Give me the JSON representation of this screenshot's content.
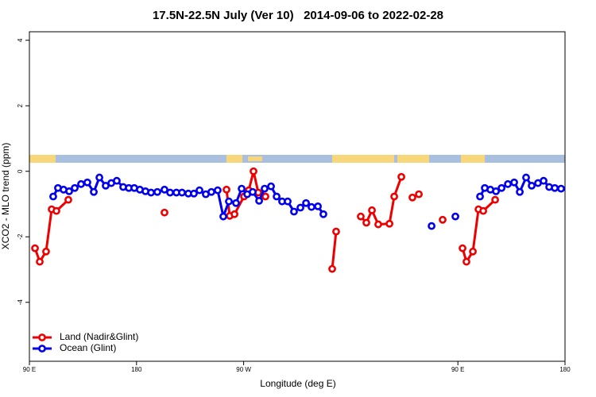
{
  "chart_data": {
    "type": "line",
    "title": "17.5N-22.5N July (Ver 10)   2014-09-06 to 2022-02-28",
    "xlabel": "Longitude (deg E)",
    "ylabel": "XCO2 - MLO trend (ppm)",
    "xlim": [
      90,
      540
    ],
    "ylim": [
      -5.8,
      4.26
    ],
    "xticks": [
      {
        "value": 90,
        "label": "90 E"
      },
      180,
      {
        "value": 270,
        "label": "90 W"
      },
      {
        "value": 450,
        "label": "90 E"
      },
      {
        "value": 540,
        "label": "180"
      }
    ],
    "yticks": [
      -4,
      -2,
      0,
      2,
      4
    ],
    "legend": "bottom-left",
    "series": [
      {
        "name": "Land (Nadir&Glint)",
        "color": "#ee0000",
        "x": [
          94.7,
          98.7,
          104.0,
          108.7,
          112.7,
          122.7,
          null,
          203.5,
          null,
          255.6,
          258.3,
          262.3,
          270.3,
          274.3,
          278.3,
          282.3,
          288.3,
          null,
          344.4,
          347.7,
          null,
          368.4,
          373.1,
          377.8,
          383.1,
          392.5,
          396.5,
          402.5,
          null,
          411.8,
          417.2,
          null,
          437.2,
          null,
          453.9,
          457.2,
          462.6,
          467.3,
          471.3,
          481.3
        ],
        "values": [
          -2.35,
          -2.76,
          -2.45,
          -1.16,
          -1.21,
          -0.87,
          null,
          -1.26,
          null,
          -0.56,
          -1.36,
          -1.31,
          -0.77,
          -0.58,
          0.0,
          -0.65,
          -0.77,
          null,
          -2.98,
          -1.84,
          null,
          -1.38,
          -1.57,
          -1.19,
          -1.62,
          -1.6,
          -0.77,
          -0.17,
          null,
          -0.8,
          -0.7,
          null,
          -1.48,
          null,
          -2.35,
          -2.76,
          -2.45,
          -1.16,
          -1.21,
          -0.87
        ]
      },
      {
        "name": "Ocean (Glint)",
        "color": "#0000ee",
        "x": [
          110.0,
          114.0,
          118.7,
          123.4,
          128.1,
          133.4,
          138.7,
          144.1,
          148.8,
          154.1,
          158.8,
          163.4,
          168.8,
          173.5,
          178.1,
          182.8,
          187.5,
          192.2,
          197.5,
          203.5,
          208.2,
          213.5,
          218.2,
          223.5,
          228.2,
          232.9,
          238.2,
          242.9,
          248.2,
          252.9,
          257.6,
          263.6,
          268.3,
          273.0,
          277.6,
          283.0,
          287.6,
          293.0,
          297.7,
          302.3,
          307.0,
          312.3,
          317.7,
          322.4,
          327.0,
          332.4,
          337.0,
          null,
          427.9,
          null,
          447.9,
          null,
          468.6,
          472.6,
          477.3,
          482.0,
          486.7,
          492.0,
          497.3,
          502.0,
          507.3,
          512.0,
          517.3,
          522.0,
          526.7,
          531.4,
          536.7
        ],
        "values": [
          -0.77,
          -0.51,
          -0.56,
          -0.61,
          -0.51,
          -0.39,
          -0.34,
          -0.63,
          -0.19,
          -0.44,
          -0.36,
          -0.29,
          -0.48,
          -0.51,
          -0.51,
          -0.56,
          -0.61,
          -0.65,
          -0.63,
          -0.56,
          -0.65,
          -0.65,
          -0.65,
          -0.68,
          -0.68,
          -0.58,
          -0.7,
          -0.63,
          -0.58,
          -1.38,
          -0.92,
          -0.97,
          -0.53,
          -0.7,
          -0.63,
          -0.9,
          -0.53,
          -0.46,
          -0.77,
          -0.92,
          -0.92,
          -1.23,
          -1.11,
          -0.97,
          -1.09,
          -1.07,
          -1.31,
          null,
          -1.67,
          null,
          -1.38,
          null,
          -0.77,
          -0.51,
          -0.56,
          -0.61,
          -0.51,
          -0.39,
          -0.34,
          -0.63,
          -0.19,
          -0.44,
          -0.36,
          -0.29,
          -0.48,
          -0.51,
          -0.53
        ]
      }
    ]
  }
}
